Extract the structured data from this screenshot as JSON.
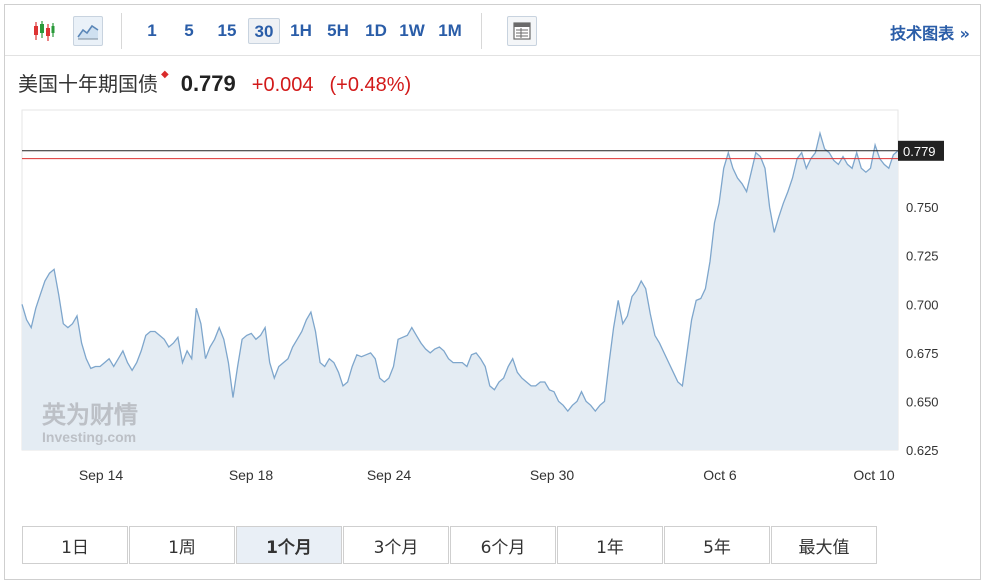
{
  "toolbar": {
    "intervals": [
      {
        "label": "1"
      },
      {
        "label": "5"
      },
      {
        "label": "15"
      },
      {
        "label": "30",
        "active": true
      },
      {
        "label": "1H"
      },
      {
        "label": "5H"
      },
      {
        "label": "1D"
      },
      {
        "label": "1W"
      },
      {
        "label": "1M"
      }
    ],
    "advanced_chart_label": "技术图表 »"
  },
  "instrument": {
    "name": "美国十年期国债",
    "price": "0.779",
    "change": "+0.004",
    "change_pct": "(+0.48%)"
  },
  "watermark": {
    "cn": "英为财情",
    "en": "Investing.com"
  },
  "chart_data": {
    "type": "area",
    "x_ticks": [
      "Sep 14",
      "Sep 18",
      "Sep 24",
      "Sep 30",
      "Oct 6",
      "Oct 10"
    ],
    "y_ticks": [
      "0.750",
      "0.725",
      "0.700",
      "0.675",
      "0.650",
      "0.625"
    ],
    "ylim": [
      0.625,
      0.8
    ],
    "last_price_label": "0.779",
    "last_price": 0.779,
    "prev_close": 0.775,
    "series": [
      {
        "values": [
          0.7,
          0.692,
          0.688,
          0.698,
          0.705,
          0.712,
          0.716,
          0.718,
          0.705,
          0.69,
          0.688,
          0.69,
          0.694,
          0.68,
          0.672,
          0.667,
          0.668,
          0.668,
          0.67,
          0.672,
          0.668,
          0.672,
          0.676,
          0.67,
          0.666,
          0.67,
          0.676,
          0.684,
          0.686,
          0.686,
          0.684,
          0.682,
          0.678,
          0.68,
          0.683,
          0.67,
          0.676,
          0.672,
          0.698,
          0.69,
          0.672,
          0.678,
          0.682,
          0.688,
          0.682,
          0.67,
          0.652,
          0.668,
          0.682,
          0.684,
          0.685,
          0.682,
          0.684,
          0.688,
          0.67,
          0.662,
          0.668,
          0.67,
          0.672,
          0.678,
          0.682,
          0.686,
          0.692,
          0.696,
          0.686,
          0.67,
          0.668,
          0.672,
          0.67,
          0.665,
          0.658,
          0.66,
          0.668,
          0.674,
          0.673,
          0.674,
          0.675,
          0.672,
          0.662,
          0.66,
          0.662,
          0.668,
          0.682,
          0.683,
          0.684,
          0.688,
          0.684,
          0.68,
          0.677,
          0.675,
          0.677,
          0.678,
          0.676,
          0.672,
          0.67,
          0.67,
          0.67,
          0.668,
          0.674,
          0.675,
          0.672,
          0.668,
          0.658,
          0.656,
          0.66,
          0.662,
          0.668,
          0.672,
          0.665,
          0.662,
          0.66,
          0.658,
          0.658,
          0.66,
          0.66,
          0.656,
          0.655,
          0.65,
          0.648,
          0.645,
          0.648,
          0.65,
          0.655,
          0.65,
          0.648,
          0.645,
          0.648,
          0.65,
          0.67,
          0.688,
          0.702,
          0.69,
          0.694,
          0.704,
          0.707,
          0.712,
          0.708,
          0.695,
          0.684,
          0.68,
          0.675,
          0.67,
          0.665,
          0.66,
          0.658,
          0.675,
          0.692,
          0.702,
          0.703,
          0.708,
          0.722,
          0.742,
          0.752,
          0.77,
          0.778,
          0.77,
          0.765,
          0.762,
          0.758,
          0.768,
          0.778,
          0.776,
          0.77,
          0.75,
          0.737,
          0.745,
          0.752,
          0.758,
          0.765,
          0.775,
          0.778,
          0.77,
          0.775,
          0.778,
          0.788,
          0.78,
          0.778,
          0.774,
          0.772,
          0.776,
          0.772,
          0.77,
          0.778,
          0.77,
          0.768,
          0.77,
          0.782,
          0.775,
          0.772,
          0.77,
          0.777,
          0.779
        ]
      }
    ]
  }
}
